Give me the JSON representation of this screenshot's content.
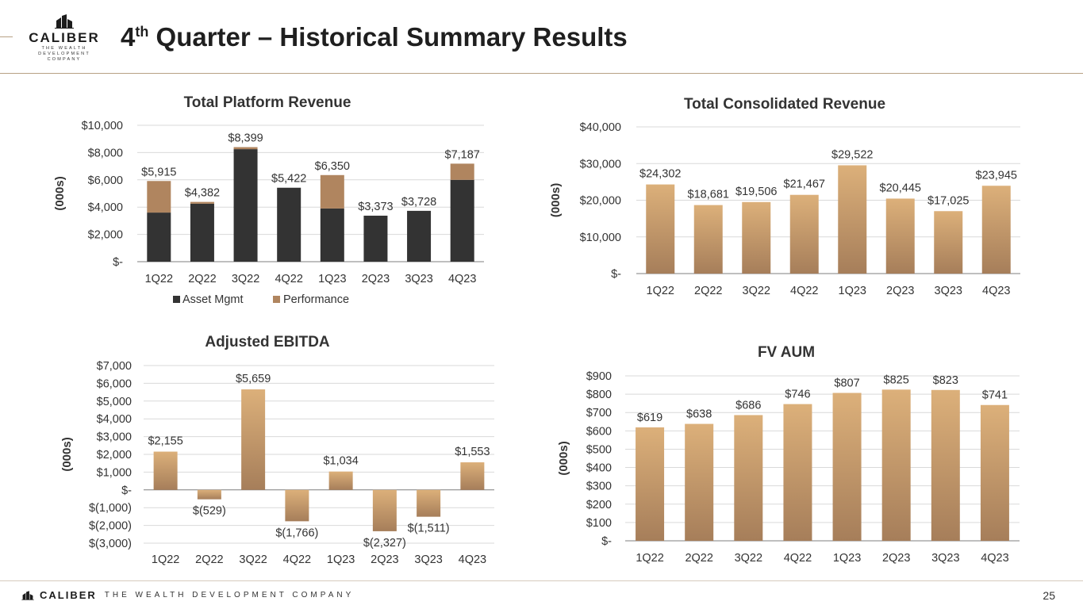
{
  "header": {
    "logo_name": "CALIBER",
    "logo_tagline_1": "THE WEALTH DEVELOPMENT",
    "logo_tagline_2": "COMPANY",
    "title_prefix": "4",
    "title_sup": "th",
    "title_rest": " Quarter – Historical Summary Results"
  },
  "footer": {
    "brand": "CALIBER",
    "tagline": "THE WEALTH DEVELOPMENT COMPANY",
    "page_number": "25"
  },
  "colors": {
    "dark_bar": "#333333",
    "perf_bar": "#b0855f",
    "grad_top": "#dcb07a",
    "grad_bottom": "#a67e5a",
    "grid": "#d9d9d9",
    "axis": "#7f7f7f"
  },
  "chart_data": [
    {
      "id": "platform",
      "type": "bar",
      "stacked": true,
      "title": "Total Platform Revenue",
      "ylabel": "(000s)",
      "ylim": [
        0,
        10000
      ],
      "yticks": [
        0,
        2000,
        4000,
        6000,
        8000,
        10000
      ],
      "ytick_labels": [
        "$-",
        "$2,000",
        "$4,000",
        "$6,000",
        "$8,000",
        "$10,000"
      ],
      "categories": [
        "1Q22",
        "2Q22",
        "3Q22",
        "4Q22",
        "1Q23",
        "2Q23",
        "3Q23",
        "4Q23"
      ],
      "series": [
        {
          "name": "Asset Mgmt",
          "values": [
            3600,
            4250,
            8250,
            5422,
            3900,
            3373,
            3728,
            6000
          ]
        },
        {
          "name": "Performance",
          "values": [
            2315,
            132,
            149,
            0,
            2450,
            0,
            0,
            1187
          ]
        }
      ],
      "totals": [
        5915,
        4382,
        8399,
        5422,
        6350,
        3373,
        3728,
        7187
      ],
      "data_labels": [
        "$5,915",
        "$4,382",
        "$8,399",
        "$5,422",
        "$6,350",
        "$3,373",
        "$3,728",
        "$7,187"
      ],
      "legend": [
        "Asset Mgmt",
        "Performance"
      ],
      "legend_position": "bottom"
    },
    {
      "id": "consolidated",
      "type": "bar",
      "title": "Total Consolidated Revenue",
      "ylabel": "(000s)",
      "ylim": [
        0,
        40000
      ],
      "yticks": [
        0,
        10000,
        20000,
        30000,
        40000
      ],
      "ytick_labels": [
        "$-",
        "$10,000",
        "$20,000",
        "$30,000",
        "$40,000"
      ],
      "categories": [
        "1Q22",
        "2Q22",
        "3Q22",
        "4Q22",
        "1Q23",
        "2Q23",
        "3Q23",
        "4Q23"
      ],
      "values": [
        24302,
        18681,
        19506,
        21467,
        29522,
        20445,
        17025,
        23945
      ],
      "data_labels": [
        "$24,302",
        "$18,681",
        "$19,506",
        "$21,467",
        "$29,522",
        "$20,445",
        "$17,025",
        "$23,945"
      ]
    },
    {
      "id": "ebitda",
      "type": "bar",
      "title": "Adjusted EBITDA",
      "ylabel": "(000s)",
      "ylim": [
        -3000,
        7000
      ],
      "yticks": [
        -3000,
        -2000,
        -1000,
        0,
        1000,
        2000,
        3000,
        4000,
        5000,
        6000,
        7000
      ],
      "ytick_labels": [
        "$(3,000)",
        "$(2,000)",
        "$(1,000)",
        "$-",
        "$1,000",
        "$2,000",
        "$3,000",
        "$4,000",
        "$5,000",
        "$6,000",
        "$7,000"
      ],
      "categories": [
        "1Q22",
        "2Q22",
        "3Q22",
        "4Q22",
        "1Q23",
        "2Q23",
        "3Q23",
        "4Q23"
      ],
      "values": [
        2155,
        -529,
        5659,
        -1766,
        1034,
        -2327,
        -1511,
        1553
      ],
      "data_labels": [
        "$2,155",
        "$(529)",
        "$5,659",
        "$(1,766)",
        "$1,034",
        "$(2,327)",
        "$(1,511)",
        "$1,553"
      ]
    },
    {
      "id": "aum",
      "type": "bar",
      "title": "FV AUM",
      "ylabel": "(000s)",
      "ylim": [
        0,
        900
      ],
      "yticks": [
        0,
        100,
        200,
        300,
        400,
        500,
        600,
        700,
        800,
        900
      ],
      "ytick_labels": [
        "$-",
        "$100",
        "$200",
        "$300",
        "$400",
        "$500",
        "$600",
        "$700",
        "$800",
        "$900"
      ],
      "categories": [
        "1Q22",
        "2Q22",
        "3Q22",
        "4Q22",
        "1Q23",
        "2Q23",
        "3Q23",
        "4Q23"
      ],
      "values": [
        619,
        638,
        686,
        746,
        807,
        825,
        823,
        741
      ],
      "data_labels": [
        "$619",
        "$638",
        "$686",
        "$746",
        "$807",
        "$825",
        "$823",
        "$741"
      ]
    }
  ]
}
